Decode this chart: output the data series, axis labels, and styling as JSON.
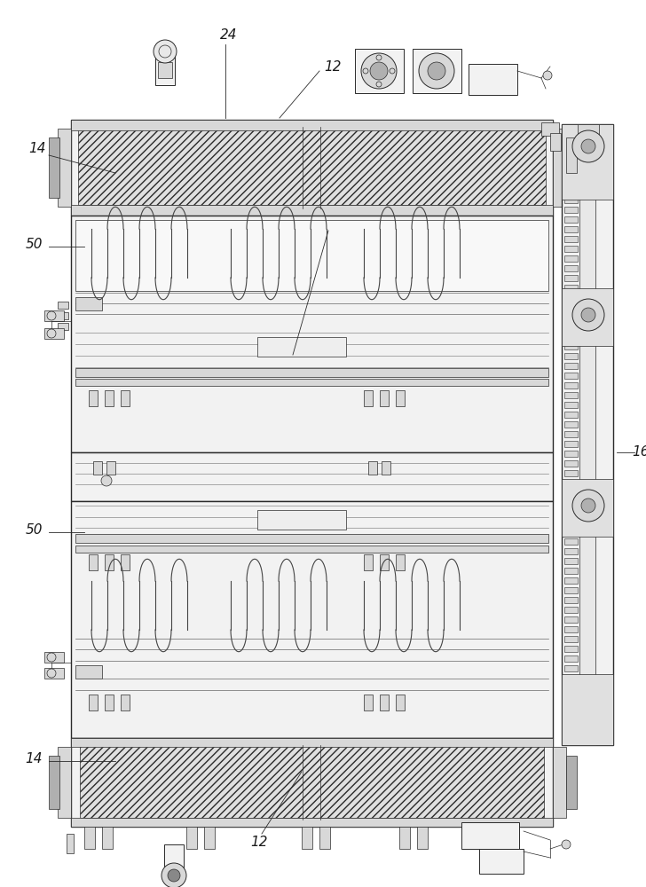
{
  "bg_color": "#ffffff",
  "line_color": "#2a2a2a",
  "label_color": "#1a1a1a",
  "figure_width": 7.28,
  "figure_height": 10.0,
  "dpi": 100,
  "lw_main": 1.0,
  "lw_thin": 0.5,
  "lw_med": 0.7,
  "gray_light": "#f2f2f2",
  "gray_med": "#d8d8d8",
  "gray_dark": "#b0b0b0",
  "hatch_fill": "#e0e0e0"
}
